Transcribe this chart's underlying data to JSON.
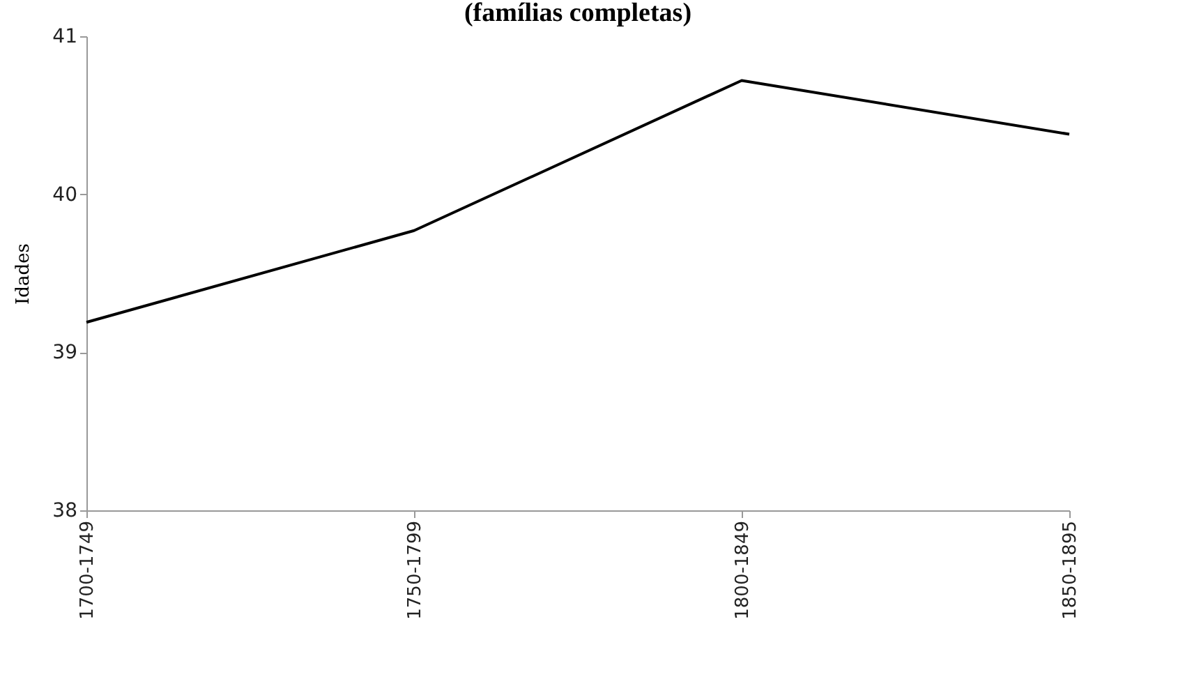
{
  "chart_data": {
    "type": "line",
    "title": "(famílias completas)",
    "ylabel": "Idades",
    "categories": [
      "1700-1749",
      "1750-1799",
      "1800-1849",
      "1850-1895"
    ],
    "series": [
      {
        "color": "#000000",
        "values": [
          39.19,
          39.77,
          40.72,
          40.38
        ]
      }
    ],
    "ylim": [
      38,
      41
    ],
    "yticks": [
      38,
      39,
      40,
      41
    ],
    "grid": false,
    "marker": "none",
    "line_style": "solid"
  }
}
